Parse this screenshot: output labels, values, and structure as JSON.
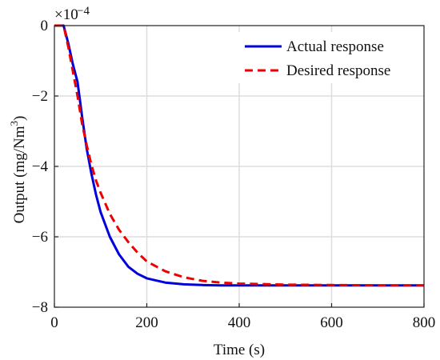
{
  "chart_data": {
    "type": "line",
    "xlabel": "Time (s)",
    "ylabel_main": "Output (mg/Nm",
    "ylabel_sup": "3",
    "ylabel_close": ")",
    "y_multiplier": {
      "base": "×10",
      "exponent": "−4"
    },
    "xlim": [
      0,
      800
    ],
    "ylim": [
      -8,
      0
    ],
    "xticks": [
      0,
      200,
      400,
      600,
      800
    ],
    "xtick_labels": [
      "0",
      "200",
      "400",
      "600",
      "800"
    ],
    "yticks": [
      0,
      -2,
      -4,
      -6,
      -8
    ],
    "ytick_labels": [
      "0",
      "−2",
      "−4",
      "−6",
      "−8"
    ],
    "grid": true,
    "legend_position": "top-right",
    "series": [
      {
        "name": "Actual response",
        "color": "#0000dd",
        "style": "solid",
        "x": [
          0,
          20,
          30,
          40,
          50,
          60,
          70,
          80,
          90,
          100,
          120,
          140,
          160,
          180,
          200,
          240,
          280,
          320,
          360,
          400,
          500,
          600,
          700,
          800
        ],
        "y": [
          0,
          0,
          -0.5,
          -1.1,
          -1.6,
          -2.6,
          -3.5,
          -4.2,
          -4.8,
          -5.3,
          -6.0,
          -6.5,
          -6.85,
          -7.05,
          -7.18,
          -7.3,
          -7.35,
          -7.37,
          -7.38,
          -7.38,
          -7.38,
          -7.38,
          -7.38,
          -7.38
        ]
      },
      {
        "name": "Desired response",
        "color": "#ee0000",
        "style": "dashed",
        "x": [
          0,
          20,
          30,
          40,
          50,
          60,
          70,
          80,
          90,
          100,
          120,
          140,
          160,
          180,
          200,
          240,
          280,
          320,
          360,
          400,
          500,
          600,
          700,
          800
        ],
        "y": [
          0,
          0,
          -0.6,
          -1.3,
          -2.0,
          -2.8,
          -3.4,
          -3.95,
          -4.4,
          -4.75,
          -5.35,
          -5.8,
          -6.15,
          -6.45,
          -6.7,
          -6.98,
          -7.15,
          -7.25,
          -7.3,
          -7.33,
          -7.36,
          -7.37,
          -7.38,
          -7.38
        ]
      }
    ]
  }
}
